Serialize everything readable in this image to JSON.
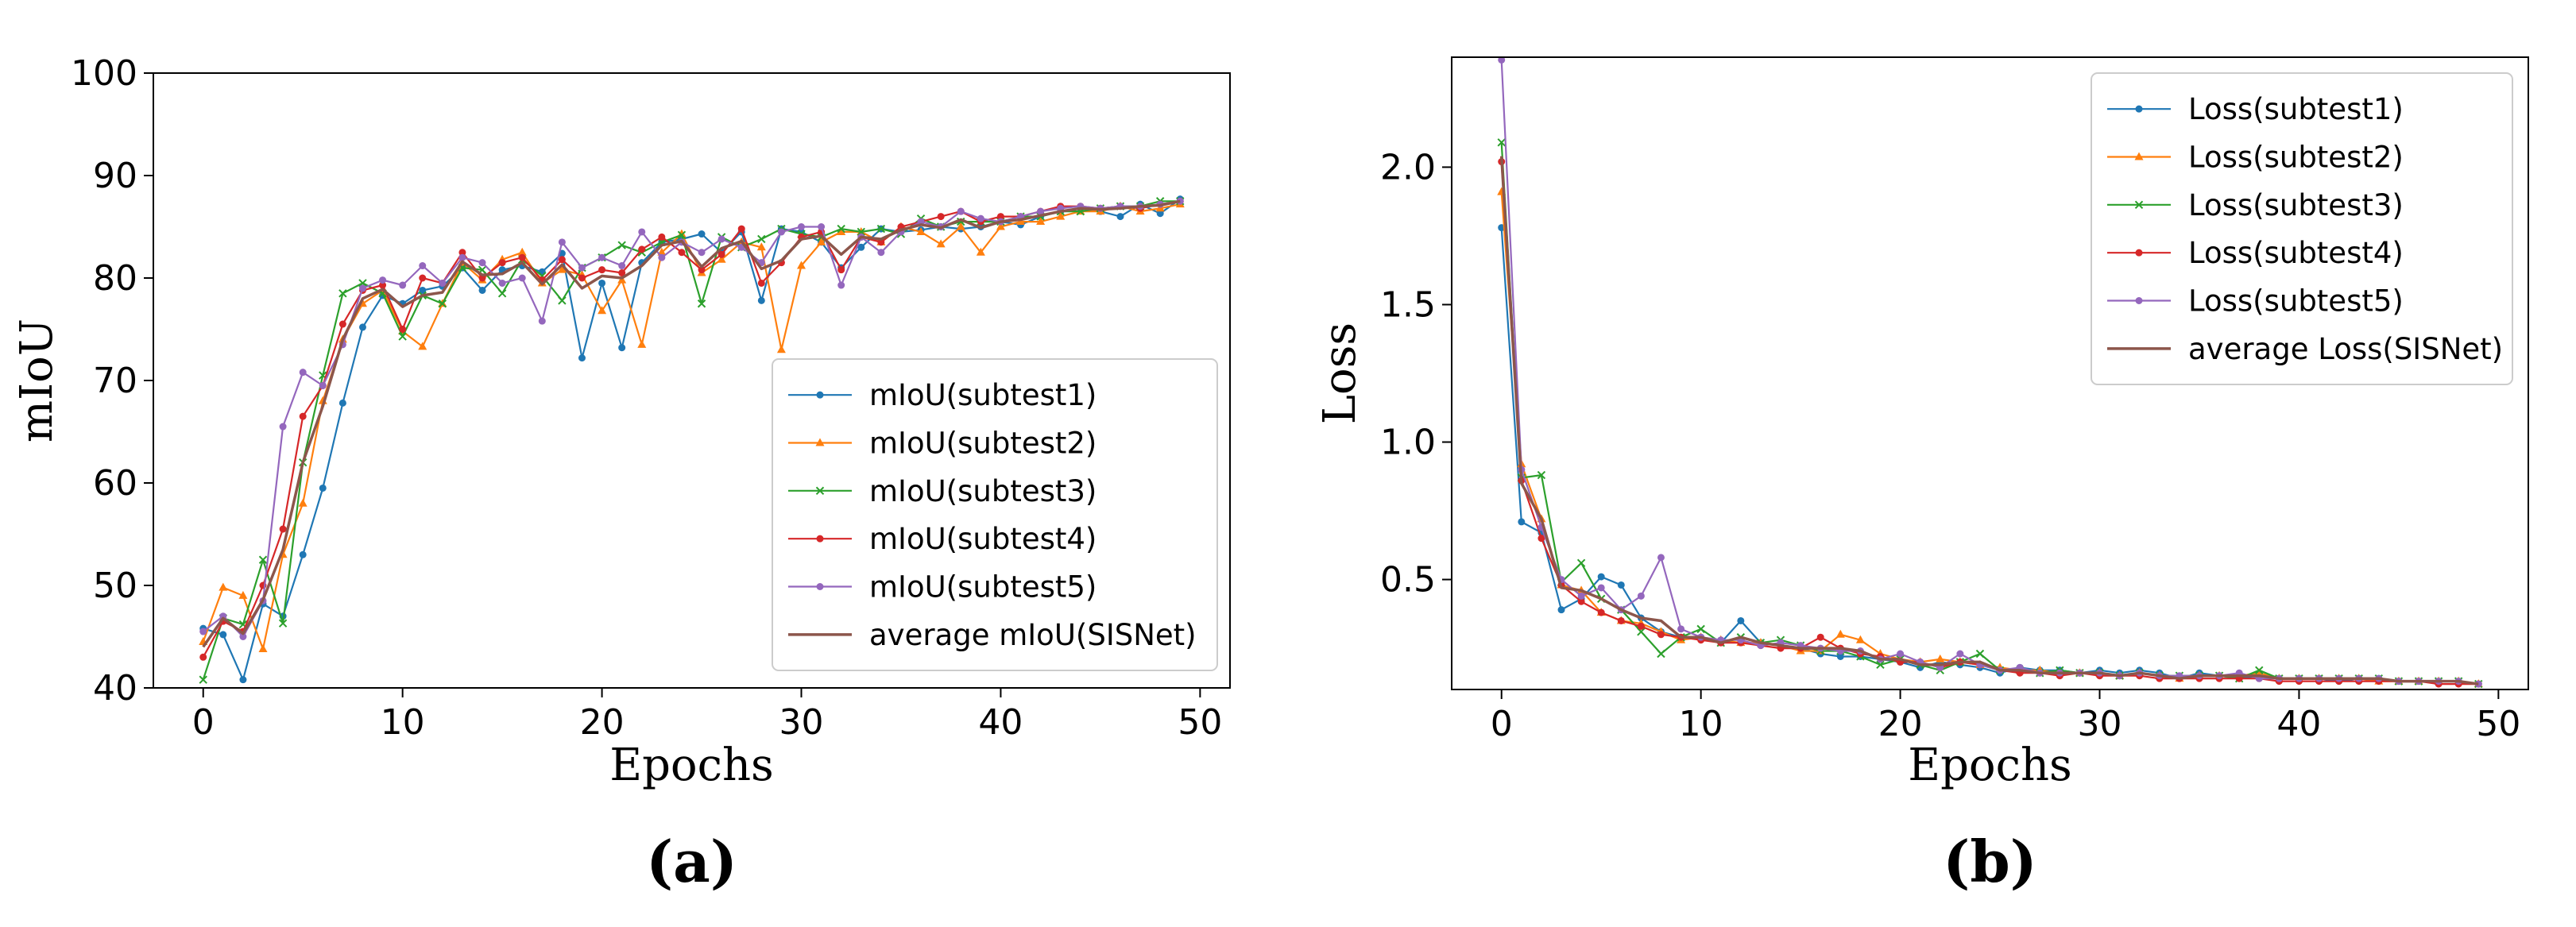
{
  "colors": {
    "subtest1": "#1f77b4",
    "subtest2": "#ff7f0e",
    "subtest3": "#2ca02c",
    "subtest4": "#d62728",
    "subtest5": "#9467bd",
    "average": "#8c564b"
  },
  "chart_data": [
    {
      "type": "line",
      "panel_label": "(a)",
      "title": "",
      "xlabel": "Epochs",
      "ylabel": "mIoU",
      "xlim": [
        -2.5,
        51.5
      ],
      "ylim": [
        40,
        100
      ],
      "xticks": [
        0,
        10,
        20,
        30,
        40,
        50
      ],
      "yticks": [
        40,
        50,
        60,
        70,
        80,
        90,
        100
      ],
      "legend_position": "lower-right",
      "x": [
        0,
        1,
        2,
        3,
        4,
        5,
        6,
        7,
        8,
        9,
        10,
        11,
        12,
        13,
        14,
        15,
        16,
        17,
        18,
        19,
        20,
        21,
        22,
        23,
        24,
        25,
        26,
        27,
        28,
        29,
        30,
        31,
        32,
        33,
        34,
        35,
        36,
        37,
        38,
        39,
        40,
        41,
        42,
        43,
        44,
        45,
        46,
        47,
        48,
        49
      ],
      "series": [
        {
          "name": "mIoU(subtest1)",
          "color_key": "subtest1",
          "marker": "dot",
          "values": [
            45.8,
            45.2,
            40.8,
            48.2,
            47.0,
            53.0,
            59.5,
            67.8,
            75.2,
            78.3,
            77.5,
            78.8,
            79.2,
            81.0,
            78.8,
            80.8,
            81.2,
            80.6,
            82.4,
            72.2,
            79.5,
            73.2,
            81.5,
            83.5,
            83.8,
            84.3,
            82.5,
            84.5,
            77.8,
            84.8,
            84.5,
            83.5,
            81.0,
            83.0,
            84.8,
            84.5,
            84.7,
            85.0,
            84.8,
            85.0,
            85.5,
            85.2,
            86.0,
            86.5,
            86.8,
            86.5,
            86.0,
            87.2,
            86.3,
            87.7
          ]
        },
        {
          "name": "mIoU(subtest2)",
          "color_key": "subtest2",
          "marker": "tri",
          "values": [
            44.5,
            49.8,
            49.0,
            43.8,
            53.0,
            58.0,
            68.0,
            74.0,
            77.5,
            78.8,
            74.8,
            73.3,
            77.5,
            81.5,
            79.8,
            81.8,
            82.5,
            79.5,
            80.8,
            80.3,
            76.8,
            79.8,
            73.5,
            82.5,
            84.3,
            80.5,
            81.8,
            83.5,
            83.0,
            73.0,
            81.2,
            83.5,
            84.5,
            84.5,
            83.5,
            85.0,
            84.5,
            83.3,
            85.0,
            82.5,
            85.0,
            85.5,
            85.5,
            86.0,
            86.5,
            86.5,
            87.0,
            86.5,
            86.8,
            87.2
          ]
        },
        {
          "name": "mIoU(subtest3)",
          "color_key": "subtest3",
          "marker": "x",
          "values": [
            40.8,
            46.8,
            46.2,
            52.5,
            46.3,
            62.0,
            70.5,
            78.5,
            79.5,
            78.5,
            74.3,
            78.3,
            77.5,
            81.0,
            80.8,
            78.5,
            81.8,
            80.2,
            77.8,
            81.0,
            82.0,
            83.2,
            82.5,
            83.5,
            84.2,
            77.5,
            84.0,
            83.0,
            83.8,
            84.8,
            84.3,
            84.0,
            84.8,
            84.5,
            84.8,
            84.3,
            85.8,
            85.0,
            85.5,
            85.5,
            85.5,
            86.0,
            86.0,
            86.5,
            86.5,
            86.8,
            87.0,
            87.0,
            87.5,
            87.5
          ]
        },
        {
          "name": "mIoU(subtest4)",
          "color_key": "subtest4",
          "marker": "dot",
          "values": [
            43.0,
            46.5,
            45.5,
            50.0,
            55.5,
            66.5,
            69.5,
            75.5,
            78.8,
            79.3,
            75.0,
            80.0,
            79.5,
            82.5,
            80.0,
            81.5,
            82.0,
            79.8,
            81.8,
            80.0,
            80.8,
            80.5,
            82.8,
            84.0,
            82.5,
            80.8,
            82.3,
            84.8,
            79.5,
            81.5,
            84.0,
            84.5,
            80.8,
            84.0,
            83.5,
            85.0,
            85.5,
            86.0,
            86.5,
            85.5,
            86.0,
            86.0,
            86.5,
            87.0,
            87.0,
            86.8,
            87.0,
            86.8,
            87.2,
            87.5
          ]
        },
        {
          "name": "mIoU(subtest5)",
          "color_key": "subtest5",
          "marker": "dot",
          "values": [
            45.5,
            47.0,
            45.0,
            48.5,
            65.5,
            70.8,
            69.5,
            73.5,
            79.0,
            79.8,
            79.3,
            81.2,
            79.5,
            82.0,
            81.5,
            79.5,
            80.0,
            75.8,
            83.5,
            81.0,
            82.0,
            81.2,
            84.5,
            82.0,
            83.5,
            82.5,
            83.8,
            83.0,
            81.5,
            84.5,
            85.0,
            85.0,
            79.3,
            84.0,
            82.5,
            84.5,
            85.5,
            85.0,
            86.5,
            85.8,
            85.5,
            86.0,
            86.5,
            86.8,
            87.0,
            86.8,
            87.0,
            87.0,
            87.2,
            87.5
          ]
        },
        {
          "name": "average mIoU(SISNet)",
          "color_key": "average",
          "marker": "none",
          "values": [
            44.0,
            46.8,
            45.3,
            48.6,
            53.5,
            62.0,
            67.5,
            74.0,
            78.0,
            78.9,
            77.2,
            78.3,
            78.6,
            81.6,
            80.3,
            80.4,
            81.5,
            79.4,
            81.3,
            79.0,
            80.2,
            80.0,
            81.2,
            83.2,
            83.6,
            81.1,
            82.9,
            83.6,
            80.9,
            81.7,
            83.8,
            84.1,
            82.3,
            84.0,
            83.8,
            84.7,
            85.2,
            84.9,
            85.7,
            84.9,
            85.5,
            85.7,
            86.1,
            86.5,
            86.8,
            86.7,
            86.8,
            87.0,
            87.1,
            87.5
          ]
        }
      ]
    },
    {
      "type": "line",
      "panel_label": "(b)",
      "title": "",
      "xlabel": "Epochs",
      "ylabel": "Loss",
      "xlim": [
        -2.5,
        51.5
      ],
      "ylim": [
        0.1,
        2.4
      ],
      "xticks": [
        0,
        10,
        20,
        30,
        40,
        50
      ],
      "yticks": [
        0.5,
        1.0,
        1.5,
        2.0
      ],
      "ytick_labels": [
        "0.5",
        "1.0",
        "1.5",
        "2.0"
      ],
      "legend_position": "upper-right",
      "x": [
        0,
        1,
        2,
        3,
        4,
        5,
        6,
        7,
        8,
        9,
        10,
        11,
        12,
        13,
        14,
        15,
        16,
        17,
        18,
        19,
        20,
        21,
        22,
        23,
        24,
        25,
        26,
        27,
        28,
        29,
        30,
        31,
        32,
        33,
        34,
        35,
        36,
        37,
        38,
        39,
        40,
        41,
        42,
        43,
        44,
        45,
        46,
        47,
        48,
        49
      ],
      "series": [
        {
          "name": "Loss(subtest1)",
          "color_key": "subtest1",
          "marker": "dot",
          "values": [
            1.78,
            0.71,
            0.67,
            0.39,
            0.43,
            0.51,
            0.48,
            0.36,
            0.31,
            0.29,
            0.29,
            0.27,
            0.35,
            0.27,
            0.26,
            0.25,
            0.23,
            0.22,
            0.22,
            0.21,
            0.2,
            0.18,
            0.2,
            0.19,
            0.18,
            0.16,
            0.18,
            0.17,
            0.17,
            0.16,
            0.17,
            0.16,
            0.17,
            0.16,
            0.14,
            0.16,
            0.15,
            0.14,
            0.15,
            0.14,
            0.14,
            0.14,
            0.13,
            0.14,
            0.14,
            0.13,
            0.13,
            0.13,
            0.13,
            0.12
          ]
        },
        {
          "name": "Loss(subtest2)",
          "color_key": "subtest2",
          "marker": "tri",
          "values": [
            1.91,
            0.92,
            0.72,
            0.48,
            0.46,
            0.38,
            0.35,
            0.34,
            0.31,
            0.28,
            0.29,
            0.28,
            0.27,
            0.27,
            0.26,
            0.24,
            0.24,
            0.3,
            0.28,
            0.23,
            0.21,
            0.2,
            0.21,
            0.2,
            0.19,
            0.18,
            0.17,
            0.17,
            0.16,
            0.16,
            0.16,
            0.15,
            0.16,
            0.15,
            0.14,
            0.15,
            0.15,
            0.15,
            0.16,
            0.14,
            0.14,
            0.14,
            0.14,
            0.14,
            0.13,
            0.13,
            0.13,
            0.13,
            0.13,
            0.12
          ]
        },
        {
          "name": "Loss(subtest3)",
          "color_key": "subtest3",
          "marker": "x",
          "values": [
            2.09,
            0.87,
            0.88,
            0.49,
            0.56,
            0.43,
            0.39,
            0.31,
            0.23,
            0.29,
            0.32,
            0.27,
            0.29,
            0.27,
            0.28,
            0.26,
            0.24,
            0.24,
            0.22,
            0.19,
            0.21,
            0.19,
            0.17,
            0.2,
            0.23,
            0.17,
            0.17,
            0.16,
            0.17,
            0.16,
            0.16,
            0.15,
            0.16,
            0.15,
            0.15,
            0.15,
            0.15,
            0.14,
            0.17,
            0.14,
            0.14,
            0.14,
            0.14,
            0.14,
            0.14,
            0.13,
            0.13,
            0.13,
            0.13,
            0.12
          ]
        },
        {
          "name": "Loss(subtest4)",
          "color_key": "subtest4",
          "marker": "dot",
          "values": [
            2.02,
            0.86,
            0.65,
            0.48,
            0.42,
            0.38,
            0.35,
            0.33,
            0.3,
            0.29,
            0.28,
            0.27,
            0.27,
            0.26,
            0.25,
            0.25,
            0.29,
            0.25,
            0.23,
            0.22,
            0.2,
            0.2,
            0.18,
            0.2,
            0.19,
            0.17,
            0.16,
            0.16,
            0.15,
            0.16,
            0.15,
            0.15,
            0.15,
            0.14,
            0.14,
            0.14,
            0.14,
            0.14,
            0.14,
            0.13,
            0.13,
            0.13,
            0.13,
            0.13,
            0.13,
            0.13,
            0.13,
            0.12,
            0.12,
            0.12
          ]
        },
        {
          "name": "Loss(subtest5)",
          "color_key": "subtest5",
          "marker": "dot",
          "values": [
            2.39,
            0.9,
            0.69,
            0.5,
            0.44,
            0.47,
            0.39,
            0.44,
            0.58,
            0.32,
            0.29,
            0.28,
            0.28,
            0.26,
            0.27,
            0.26,
            0.25,
            0.24,
            0.24,
            0.21,
            0.23,
            0.2,
            0.18,
            0.23,
            0.19,
            0.17,
            0.18,
            0.16,
            0.16,
            0.16,
            0.16,
            0.15,
            0.16,
            0.15,
            0.15,
            0.15,
            0.15,
            0.16,
            0.14,
            0.14,
            0.14,
            0.14,
            0.14,
            0.14,
            0.14,
            0.13,
            0.13,
            0.13,
            0.13,
            0.12
          ]
        },
        {
          "name": "average Loss(SISNet)",
          "color_key": "average",
          "marker": "none",
          "values": [
            2.04,
            0.85,
            0.72,
            0.47,
            0.46,
            0.43,
            0.39,
            0.36,
            0.35,
            0.29,
            0.29,
            0.27,
            0.29,
            0.27,
            0.26,
            0.25,
            0.25,
            0.25,
            0.24,
            0.21,
            0.21,
            0.19,
            0.19,
            0.2,
            0.2,
            0.17,
            0.17,
            0.16,
            0.16,
            0.16,
            0.16,
            0.15,
            0.16,
            0.15,
            0.14,
            0.15,
            0.15,
            0.15,
            0.15,
            0.14,
            0.14,
            0.14,
            0.14,
            0.14,
            0.14,
            0.13,
            0.13,
            0.13,
            0.13,
            0.12
          ]
        }
      ]
    }
  ]
}
